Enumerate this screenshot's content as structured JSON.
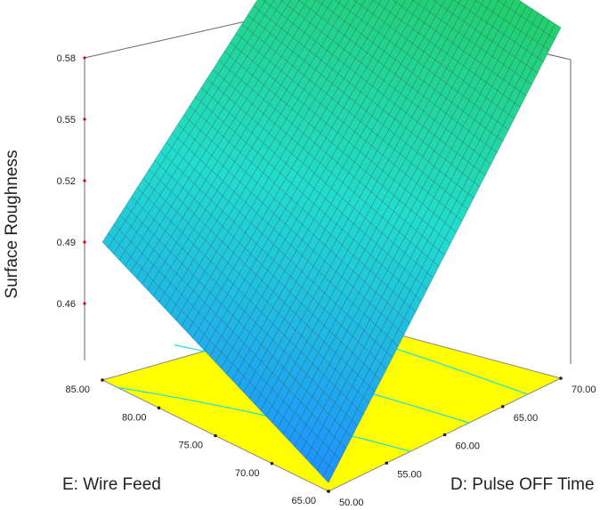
{
  "chart_data": {
    "type": "surface3d",
    "title": "",
    "zlabel": "Surface Roughness",
    "xlabel": "D: Pulse OFF Time",
    "ylabel": "E: Wire Feed",
    "x_ticks": [
      "50.00",
      "55.00",
      "60.00",
      "65.00",
      "70.00"
    ],
    "y_ticks": [
      "65.00",
      "70.00",
      "75.00",
      "80.00",
      "85.00"
    ],
    "z_ticks": [
      "0.46",
      "0.49",
      "0.52",
      "0.55",
      "0.58"
    ],
    "xlim": [
      50,
      70
    ],
    "ylim": [
      65,
      85
    ],
    "zlim": [
      0.445,
      0.585
    ],
    "grid_resolution": 40,
    "surface": {
      "corners": [
        {
          "x": 50,
          "y": 65,
          "z": 0.448
        },
        {
          "x": 70,
          "y": 65,
          "z": 0.567
        },
        {
          "x": 50,
          "y": 85,
          "z": 0.493
        },
        {
          "x": 70,
          "y": 85,
          "z": 0.58
        }
      ]
    },
    "floor_color": "#ffff00",
    "surface_colors": [
      "#1e90ff",
      "#22ddcc",
      "#22cc55"
    ],
    "contour_color": "#22dddd",
    "tick_marker_color": "#dd0000"
  }
}
